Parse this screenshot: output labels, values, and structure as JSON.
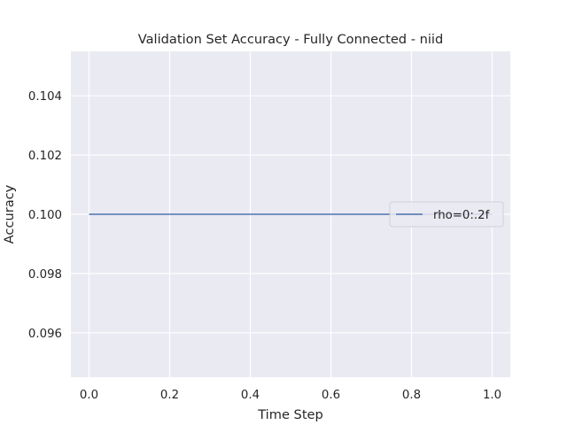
{
  "chart_data": {
    "type": "line",
    "title": "Validation Set Accuracy - Fully Connected - niid",
    "xlabel": "Time Step",
    "ylabel": "Accuracy",
    "xlim": [
      -0.045,
      1.045
    ],
    "ylim": [
      0.0945,
      0.1055
    ],
    "xticks": [
      0.0,
      0.2,
      0.4,
      0.6,
      0.8,
      1.0
    ],
    "xtick_labels": [
      "0.0",
      "0.2",
      "0.4",
      "0.6",
      "0.8",
      "1.0"
    ],
    "yticks": [
      0.096,
      0.098,
      0.1,
      0.102,
      0.104
    ],
    "ytick_labels": [
      "0.096",
      "0.098",
      "0.100",
      "0.102",
      "0.104"
    ],
    "grid": true,
    "legend_position": "center-right",
    "series": [
      {
        "name": "rho=0:.2f",
        "color": "#4c72b0",
        "x": [
          0.0,
          1.0
        ],
        "y": [
          0.1,
          0.1
        ]
      }
    ],
    "colors": {
      "plot_background": "#eaeaf2",
      "grid": "#ffffff",
      "text": "#262626"
    }
  }
}
